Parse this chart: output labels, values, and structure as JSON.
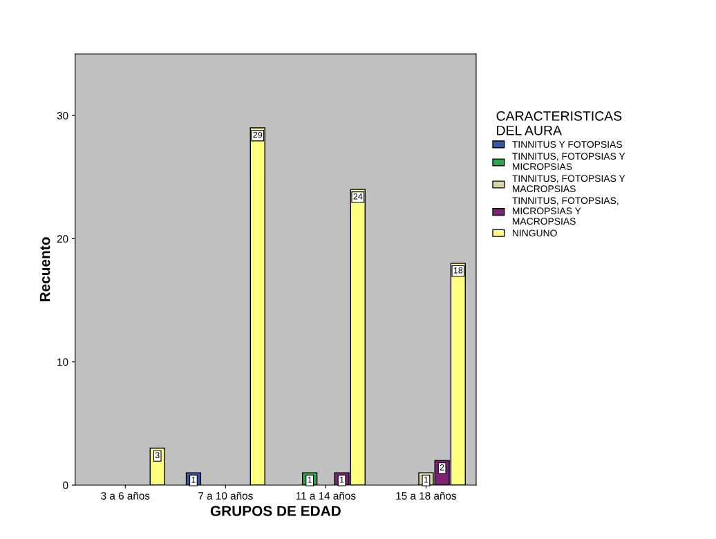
{
  "chart_data": {
    "type": "bar",
    "xlabel": "GRUPOS DE EDAD",
    "ylabel": "Recuento",
    "legend_title": "CARACTERISTICAS\nDEL AURA",
    "categories": [
      "3 a 6 años",
      "7 a 10 años",
      "11 a 14 años",
      "15 a 18 años"
    ],
    "series": [
      {
        "name": "TINNITUS Y FOTOPSIAS",
        "color": "#3a56a8",
        "values": [
          null,
          1,
          null,
          null
        ]
      },
      {
        "name": "TINNITUS, FOTOPSIAS Y\nMICROPSIAS",
        "color": "#2ba84a",
        "values": [
          null,
          null,
          1,
          null
        ]
      },
      {
        "name": "TINNITUS, FOTOPSIAS Y\nMACROPSIAS",
        "color": "#d9d5a5",
        "values": [
          null,
          null,
          null,
          1
        ]
      },
      {
        "name": "TINNITUS, FOTOPSIAS,\nMICROPSIAS Y\nMACROPSIAS",
        "color": "#7d2274",
        "values": [
          null,
          null,
          1,
          2
        ]
      },
      {
        "name": "NINGUNO",
        "color": "#ffff80",
        "values": [
          3,
          29,
          24,
          18
        ]
      }
    ],
    "ylim": [
      0,
      35
    ],
    "yticks": [
      0,
      10,
      20,
      30
    ],
    "data_labels": true,
    "legend": "right",
    "grid": false
  }
}
